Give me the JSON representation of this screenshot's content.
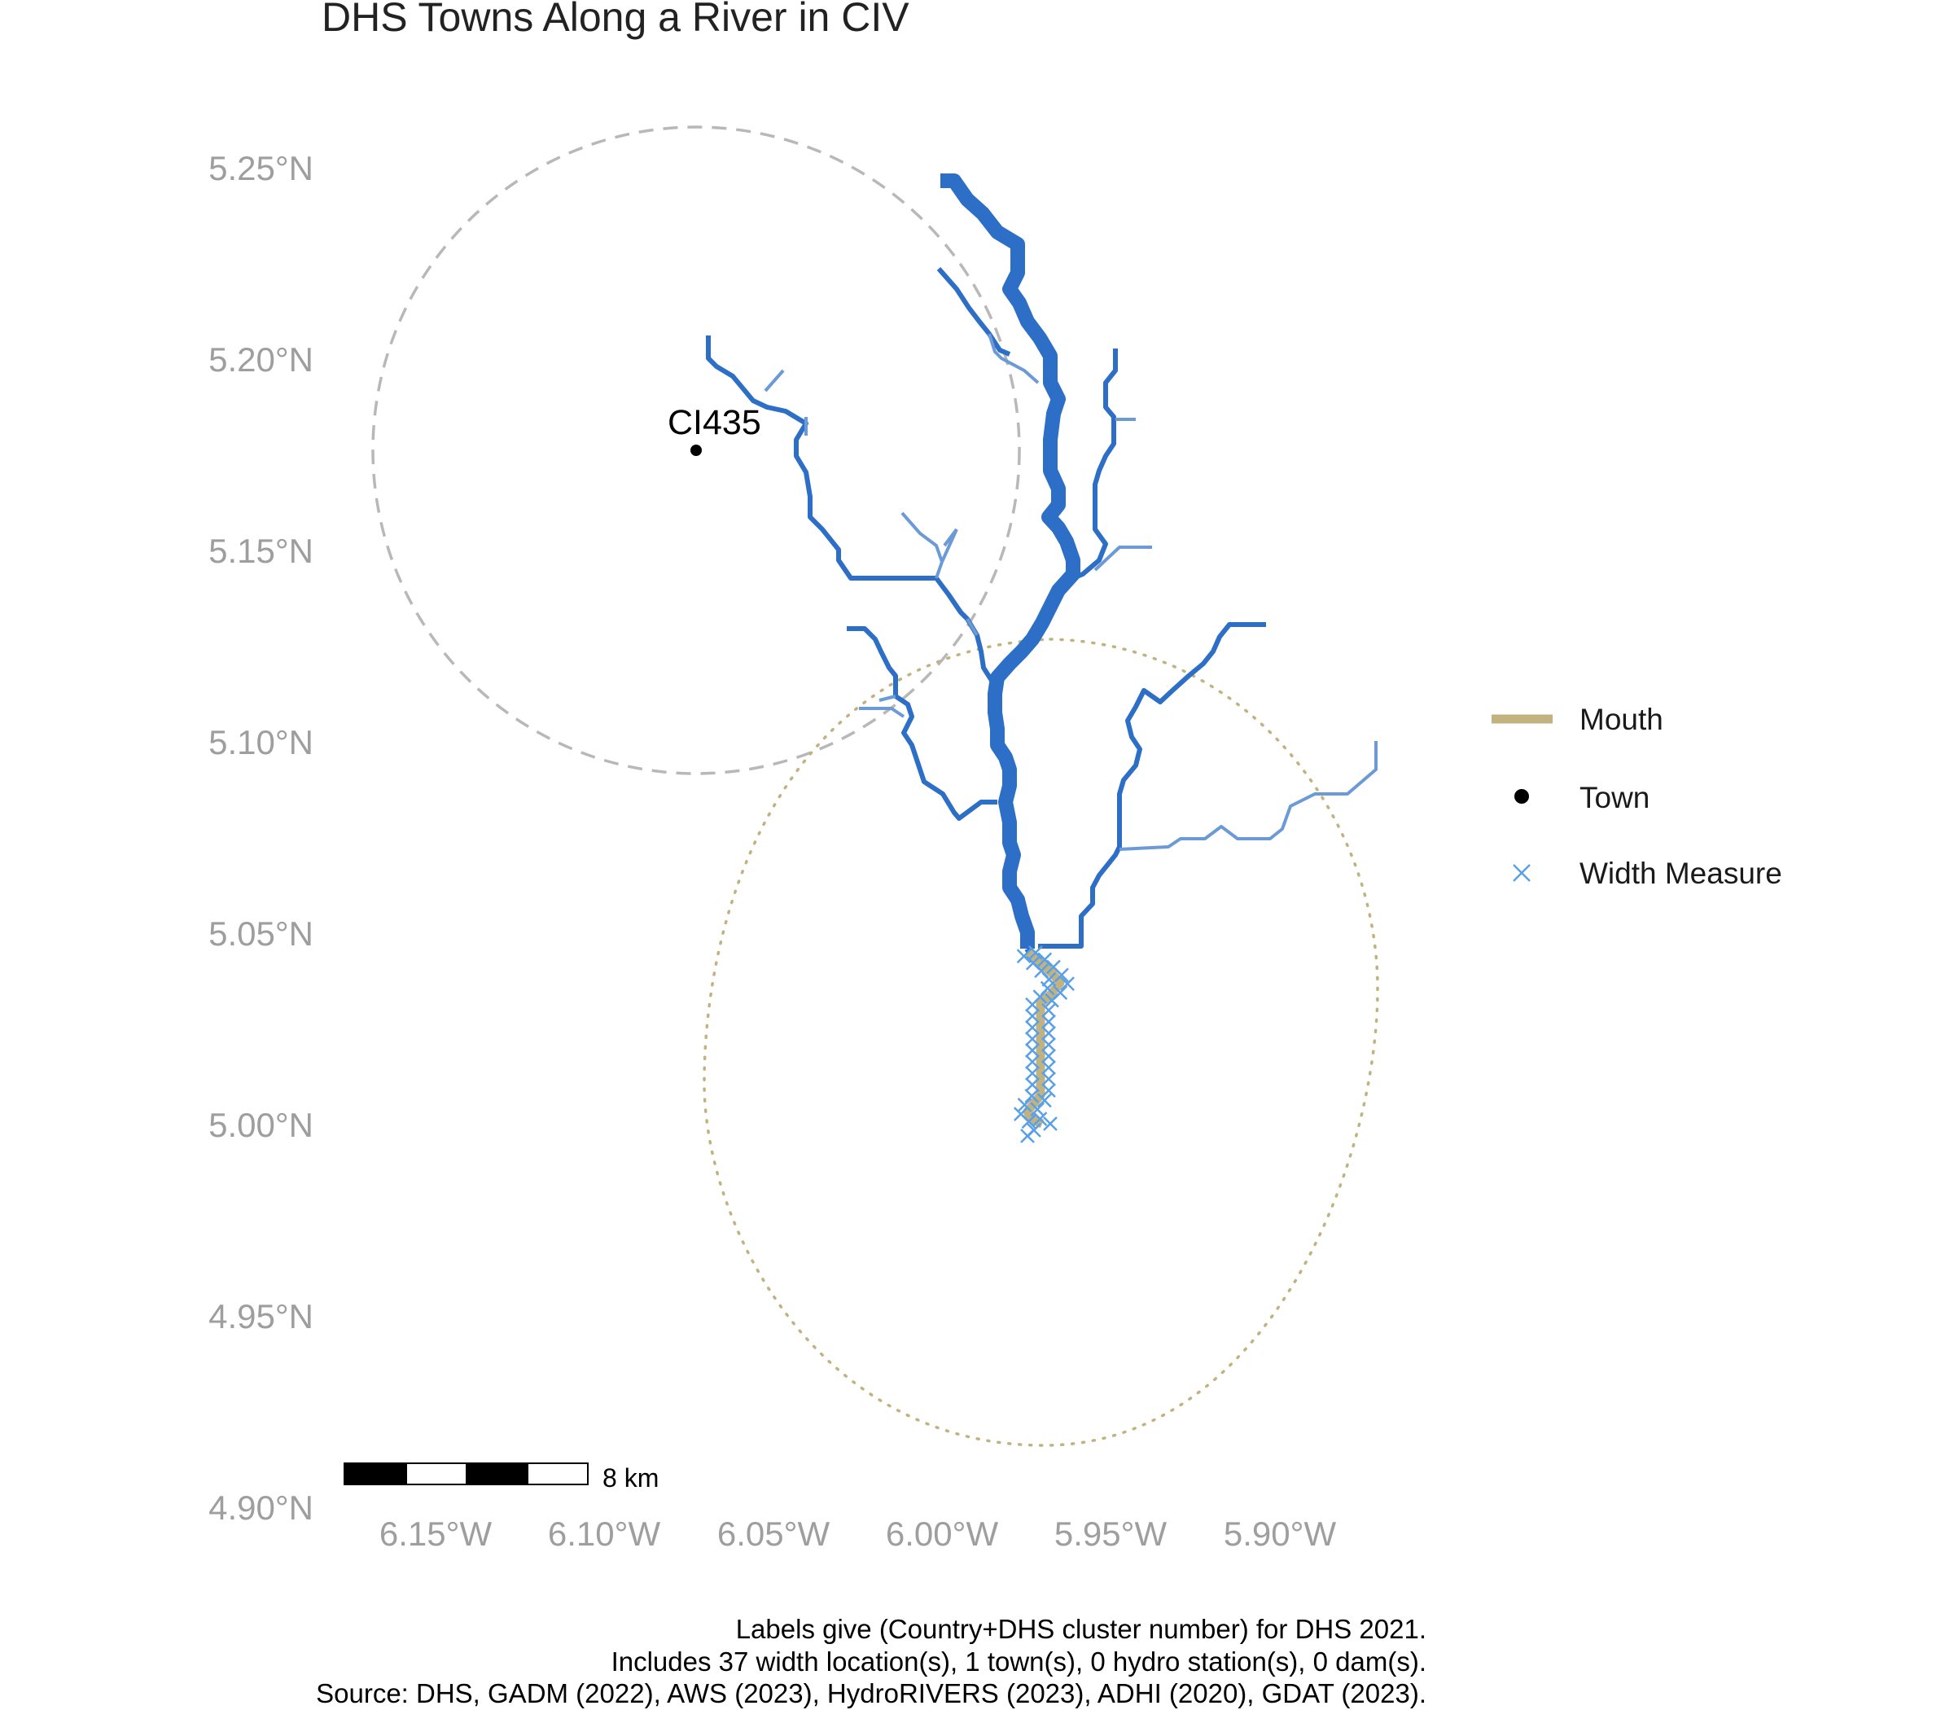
{
  "title": "DHS Towns Along a River in CIV",
  "latitude_labels": [
    "5.25°N",
    "5.20°N",
    "5.15°N",
    "5.10°N",
    "5.05°N",
    "5.00°N",
    "4.95°N",
    "4.90°N"
  ],
  "longitude_labels": [
    "6.15°W",
    "6.10°W",
    "6.05°W",
    "6.00°W",
    "5.95°W",
    "5.90°W"
  ],
  "legend": {
    "mouth": "Mouth",
    "town": "Town",
    "width_measure": "Width Measure"
  },
  "town": {
    "label": "CI435",
    "lat": 5.176,
    "lon": -6.071
  },
  "scale_bar": {
    "label": "8 km"
  },
  "caption": {
    "line1": "Labels give (Country+DHS cluster number) for DHS 2021.",
    "line2": "Includes 37 width location(s), 1 town(s), 0 hydro station(s), 0 dam(s).",
    "line3": "Source: DHS, GADM (2022), AWS (2023), HydroRIVERS (2023), ADHI (2020), GDAT (2023)."
  },
  "colors": {
    "river": "#2d6fc6",
    "river_minor": "#6b9ad6",
    "mouth": "#c2b280",
    "width_measure": "#5aa0e6",
    "town": "#000000",
    "buffer_town": "#b8b8b8",
    "buffer_mouth": "#c2b280",
    "axis_labels": "#9e9e9e"
  }
}
